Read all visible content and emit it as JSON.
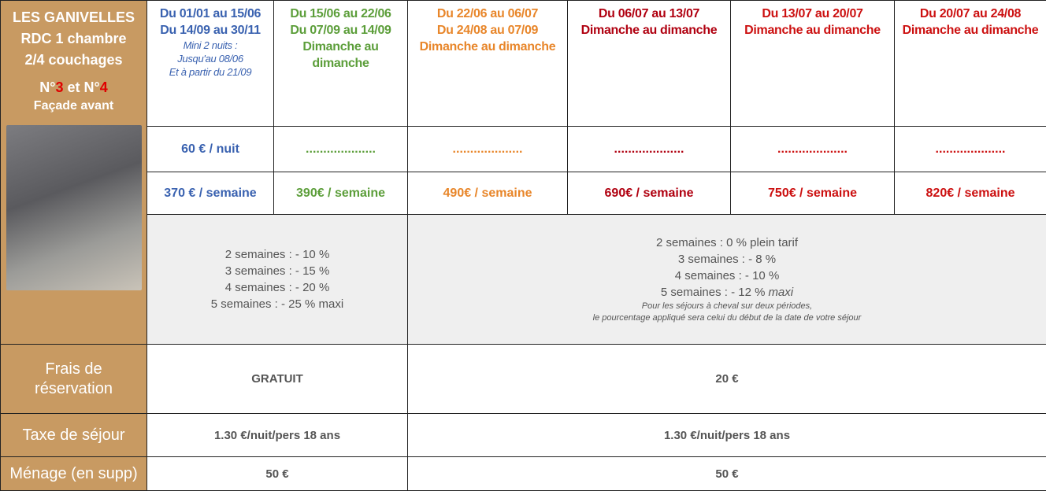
{
  "property": {
    "name": "LES GANIVELLES",
    "lines": [
      "RDC 1 chambre",
      "2/4 couchages"
    ],
    "units": [
      "N°",
      "3",
      " et N°",
      "4"
    ],
    "side": "Façade avant"
  },
  "periods": [
    {
      "color": "#3a62b0",
      "dates": [
        "Du 01/01 au 15/06",
        "Du 14/09 au 30/11"
      ],
      "note": [
        "Mini 2 nuits :",
        "Jusqu'au 08/06",
        "Et à partir du 21/09"
      ],
      "nightly": "60 € / nuit",
      "weekly": "370 € / semaine"
    },
    {
      "color": "#5c9e3a",
      "dates": [
        "Du 15/06 au 22/06",
        "Du 07/09 au 14/09",
        "Dimanche au",
        "dimanche"
      ],
      "nightly": "....................",
      "weekly": "390€ / semaine"
    },
    {
      "color": "#e8862a",
      "dates": [
        "Du 22/06 au 06/07",
        "Du 24/08 au 07/09",
        "Dimanche au dimanche"
      ],
      "nightly": "....................",
      "weekly": "490€ / semaine"
    },
    {
      "color": "#b00010",
      "dates": [
        "Du 06/07 au 13/07",
        "Dimanche au dimanche"
      ],
      "nightly": "....................",
      "weekly": "690€ / semaine"
    },
    {
      "color": "#cc1010",
      "dates": [
        "Du 13/07 au 20/07",
        "Dimanche au dimanche"
      ],
      "nightly": "....................",
      "weekly": "750€ / semaine"
    },
    {
      "color": "#cc1010",
      "dates": [
        "Du 20/07 au 24/08",
        "Dimanche au dimanche"
      ],
      "nightly": "....................",
      "weekly": "820€ / semaine"
    }
  ],
  "discounts": [
    {
      "lines": [
        "2 semaines : - 10 %",
        "3 semaines : - 15 %",
        "4 semaines : - 20 %",
        "5 semaines : - 25 % maxi"
      ]
    },
    {
      "lines": [
        "2 semaines : 0 % plein tarif",
        "3 semaines : - 8 %",
        "4 semaines : - 10 %"
      ],
      "last": [
        "5 semaines : - 12 %",
        "maxi"
      ],
      "note": [
        "Pour les séjours à cheval sur deux périodes,",
        "le pourcentage appliqué sera celui du début de la date de votre séjour"
      ]
    }
  ],
  "rows": [
    {
      "label": [
        "Frais de",
        "réservation"
      ],
      "values": [
        "GRATUIT",
        "20 €"
      ]
    },
    {
      "label": [
        "Taxe de séjour"
      ],
      "values": [
        "1.30 €/nuit/pers 18 ans",
        "1.30 €/nuit/pers 18 ans"
      ]
    },
    {
      "label": [
        "Ménage (en supp)"
      ],
      "values": [
        "50 €",
        "50 €"
      ]
    }
  ]
}
